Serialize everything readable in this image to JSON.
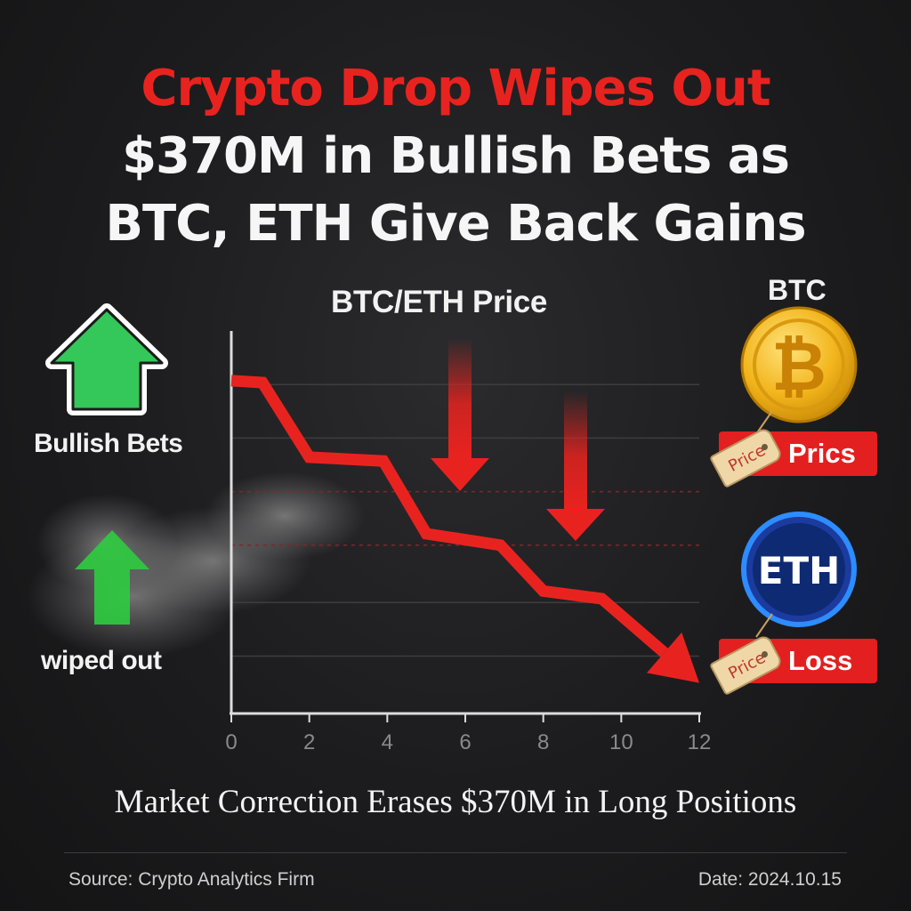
{
  "headline": {
    "line1": "Crypto Drop Wipes Out",
    "line2": "$370M in Bullish Bets as",
    "line3": "BTC, ETH Give Back Gains"
  },
  "left_panel": {
    "bullish_label": "Bullish Bets",
    "wiped_label": "wiped out",
    "bullish_icon": "up-arrow-icon",
    "wiped_icon": "up-arrow-icon"
  },
  "coins": {
    "btc": {
      "label": "BTC",
      "symbol": "₿",
      "tag_text": "Price",
      "box_text": "Prics",
      "icon": "bitcoin-icon"
    },
    "eth": {
      "label": "ETH",
      "symbol": "ETH",
      "tag_text": "Price",
      "box_text": "Loss",
      "icon": "ethereum-icon"
    }
  },
  "chart_data": {
    "type": "line",
    "title": "BTC/ETH Price",
    "xlabel": "",
    "ylabel": "",
    "x_ticks": [
      0,
      2,
      4,
      6,
      8,
      10,
      12
    ],
    "xlim": [
      0,
      12
    ],
    "ylim": [
      0,
      100
    ],
    "grid": true,
    "series": [
      {
        "x": [
          0,
          0.8,
          2,
          3.9,
          5,
          6.9,
          8,
          9.5,
          12
        ],
        "y": [
          87,
          86.5,
          67,
          66,
          47,
          44,
          32,
          30,
          8
        ]
      }
    ],
    "annotations": [
      "down-arrow",
      "down-arrow"
    ]
  },
  "caption": "Market Correction Erases $370M in Long Positions",
  "footer": {
    "source": "Source: Crypto Analytics Firm",
    "date": "Date: 2024.10.15"
  },
  "colors": {
    "accent_red": "#e8231f",
    "bull_green": "#2ecc40",
    "btc_gold": "#f2b51c",
    "eth_blue": "#1f5fd1",
    "background": "#1c1c1e"
  }
}
